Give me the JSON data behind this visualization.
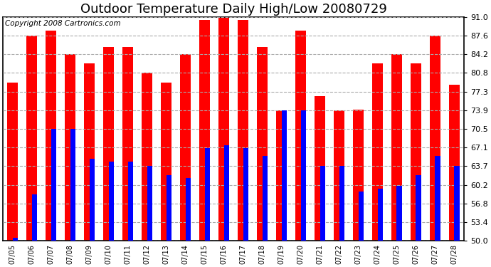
{
  "title": "Outdoor Temperature Daily High/Low 20080729",
  "copyright": "Copyright 2008 Cartronics.com",
  "dates": [
    "07/05",
    "07/06",
    "07/07",
    "07/08",
    "07/09",
    "07/10",
    "07/11",
    "07/12",
    "07/13",
    "07/14",
    "07/15",
    "07/16",
    "07/17",
    "07/18",
    "07/19",
    "07/20",
    "07/21",
    "07/22",
    "07/23",
    "07/24",
    "07/25",
    "07/26",
    "07/27",
    "07/28"
  ],
  "highs": [
    79.0,
    87.6,
    88.5,
    84.2,
    82.5,
    85.5,
    85.5,
    80.8,
    79.0,
    84.2,
    90.5,
    91.0,
    90.5,
    85.5,
    73.9,
    88.5,
    76.5,
    73.9,
    74.0,
    82.5,
    84.2,
    82.5,
    87.6,
    78.5
  ],
  "lows": [
    50.5,
    58.5,
    70.5,
    70.5,
    65.0,
    64.5,
    64.5,
    63.7,
    62.0,
    61.5,
    67.0,
    67.5,
    67.0,
    65.5,
    73.9,
    73.9,
    63.7,
    63.7,
    59.0,
    59.5,
    60.0,
    62.0,
    65.5,
    63.7
  ],
  "high_color": "#ff0000",
  "low_color": "#0000ff",
  "background_color": "#ffffff",
  "grid_color": "#aaaaaa",
  "ymin": 50.0,
  "ymax": 91.0,
  "yticks": [
    50.0,
    53.4,
    56.8,
    60.2,
    63.7,
    67.1,
    70.5,
    73.9,
    77.3,
    80.8,
    84.2,
    87.6,
    91.0
  ],
  "red_bar_width": 0.55,
  "blue_bar_width": 0.28,
  "title_fontsize": 13,
  "copyright_fontsize": 7.5,
  "tick_fontsize": 8,
  "xtick_fontsize": 7
}
